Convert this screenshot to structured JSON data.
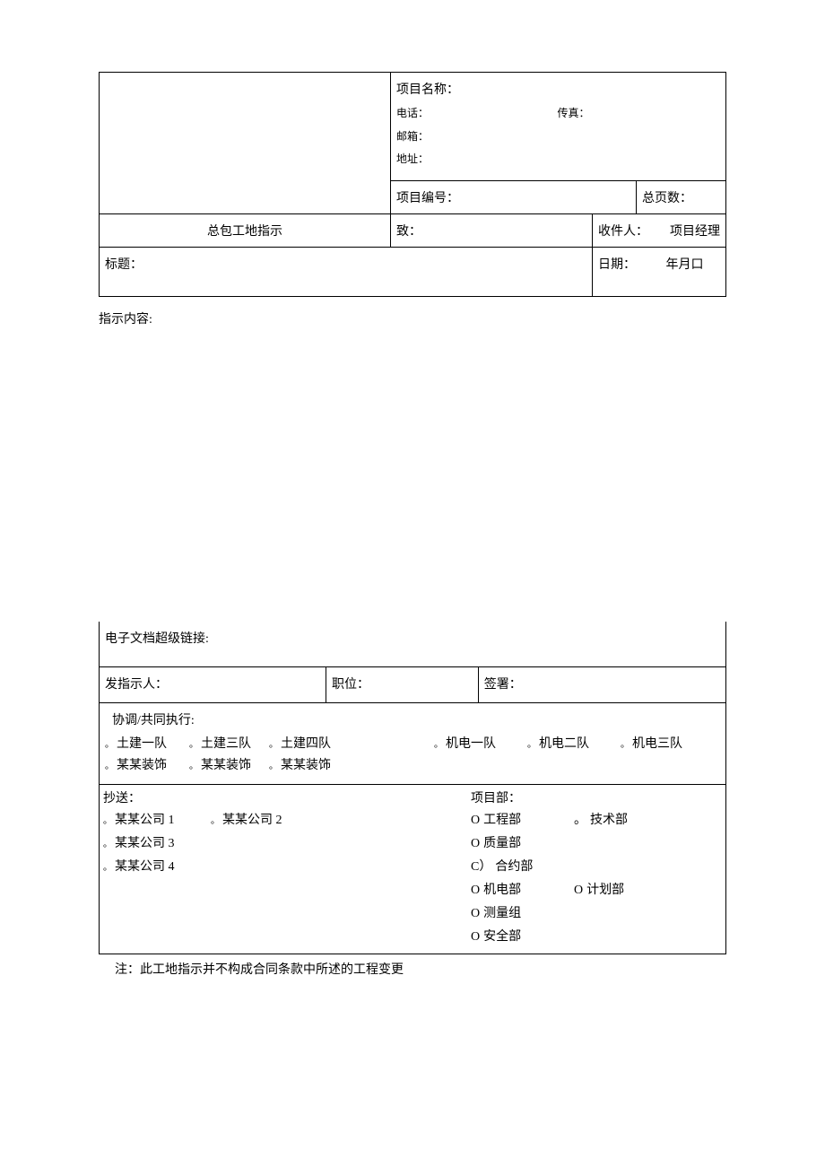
{
  "header": {
    "project_name_label": "项目名称：",
    "phone_label": "电话：",
    "fax_label": "传真：",
    "email_label": "邮箱：",
    "address_label": "地址：",
    "project_number_label": "项目编号：",
    "total_pages_label": "总页数：",
    "title": "总包工地指示",
    "to_label": "致：",
    "recipient_label": "收件人：",
    "recipient_value": "项目经理",
    "subject_label": "标题：",
    "date_label": "日期：",
    "date_value": "年月口"
  },
  "content": {
    "instruction_label": "指示内容:"
  },
  "bottom": {
    "link_label": "电子文档超级链接:",
    "issuer_label": "发指示人：",
    "position_label": "职位：",
    "sign_label": "签署：",
    "coord_label": "协调/共同执行:",
    "coord_row1": [
      {
        "mark": "。",
        "text": "土建一队",
        "cls": "w90"
      },
      {
        "mark": "。",
        "text": "土建三队",
        "cls": "w85"
      },
      {
        "mark": "。",
        "text": "土建四队",
        "cls": "w180"
      },
      {
        "mark": "。",
        "text": "机电一队",
        "cls": "w100"
      },
      {
        "mark": "。",
        "text": "机电二队",
        "cls": "w100"
      },
      {
        "mark": "。",
        "text": "机电三队",
        "cls": "w100"
      }
    ],
    "coord_row2": [
      {
        "mark": "。",
        "text": "某某装饰",
        "cls": "w90"
      },
      {
        "mark": "。",
        "text": "某某装饰",
        "cls": "w85"
      },
      {
        "mark": "。",
        "text": "某某装饰",
        "cls": "w100"
      }
    ],
    "cc_label": "抄送：",
    "cc_companies_row1": [
      {
        "mark": "。",
        "text": "某某公司 1",
        "cls": "w120"
      },
      {
        "mark": "。",
        "text": "某某公司 2",
        "cls": "w120"
      }
    ],
    "cc_companies_row2": [
      {
        "mark": "。",
        "text": "某某公司 3",
        "cls": "w120"
      }
    ],
    "cc_companies_row3": [
      {
        "mark": "。",
        "text": "某某公司 4",
        "cls": "w120"
      }
    ],
    "dept_label": "项目部：",
    "depts_row1": [
      {
        "mark": "O",
        "text": "工程部",
        "cls": "dw115"
      },
      {
        "mark": "。",
        "text": "技术部",
        "cls": "dw130"
      },
      {
        "mark": "O",
        "text": "质量部",
        "cls": "dw90"
      }
    ],
    "depts_row2": [
      {
        "mark": "C）",
        "text": "合约部",
        "cls": "dw115"
      }
    ],
    "depts_row3": [
      {
        "mark": "O",
        "text": "机电部",
        "cls": "dw115"
      },
      {
        "mark": "O",
        "text": "计划部",
        "cls": "dw130"
      },
      {
        "mark": "O",
        "text": "测量组",
        "cls": "dw90"
      }
    ],
    "depts_row4": [
      {
        "mark": "O",
        "text": "安全部",
        "cls": "dw115"
      }
    ]
  },
  "footnote": "注：此工地指示并不构成合同条款中所述的工程变更"
}
